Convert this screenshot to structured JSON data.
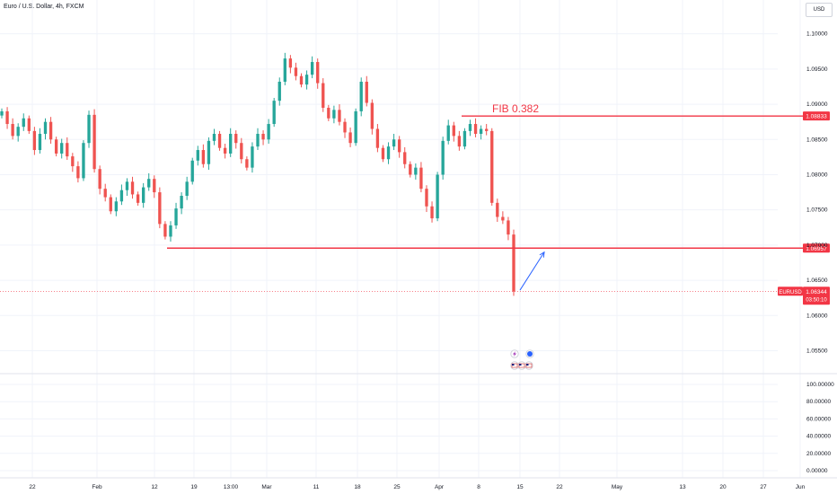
{
  "header": {
    "title": "Euro / U.S. Dollar, 4h, FXCM",
    "currency_label": "USD"
  },
  "colors": {
    "up": "#26a69a",
    "down": "#ef5350",
    "level": "#f23645",
    "arrow": "#2962ff",
    "grid": "#f0f3fa",
    "text": "#131722"
  },
  "chart_data": {
    "type": "candlestick",
    "symbol": "EURUSD",
    "timeframe": "4h",
    "x_ticks": [
      "22",
      "Feb",
      "12",
      "19",
      "13:00",
      "Mar",
      "11",
      "18",
      "25",
      "Apr",
      "8",
      "15",
      "22",
      "May",
      "13",
      "20",
      "27",
      "Jun"
    ],
    "y_ticks": [
      "1.10000",
      "1.09500",
      "1.09000",
      "1.08500",
      "1.08000",
      "1.07500",
      "1.07000",
      "1.06500",
      "1.06000",
      "1.05500"
    ],
    "ylim": [
      1.052,
      1.102
    ],
    "closes": [
      1.089,
      1.0872,
      1.0855,
      1.0868,
      1.088,
      1.0862,
      1.0835,
      1.0858,
      1.0875,
      1.085,
      1.083,
      1.0845,
      1.0826,
      1.0812,
      1.0795,
      1.0845,
      1.0885,
      1.0808,
      1.078,
      1.0768,
      1.0748,
      1.0762,
      1.0778,
      1.079,
      1.0772,
      1.076,
      1.0782,
      1.0794,
      1.0775,
      1.073,
      1.0712,
      1.0728,
      1.0752,
      1.077,
      1.079,
      1.082,
      1.0835,
      1.0815,
      1.0848,
      1.0858,
      1.0838,
      1.083,
      1.0858,
      1.0845,
      1.0822,
      1.081,
      1.084,
      1.0858,
      1.085,
      1.0872,
      1.0905,
      1.0932,
      1.0965,
      1.0952,
      1.094,
      1.0928,
      1.0942,
      1.096,
      1.093,
      1.0895,
      1.088,
      1.0892,
      1.0875,
      1.086,
      1.0845,
      1.089,
      1.0932,
      1.0902,
      1.0865,
      1.0838,
      1.0822,
      1.084,
      1.085,
      1.0832,
      1.0815,
      1.08,
      1.081,
      1.078,
      1.0755,
      1.0738,
      1.08,
      1.0848,
      1.087,
      1.0855,
      1.084,
      1.0862,
      1.0872,
      1.0858,
      1.0865,
      1.0862,
      1.076,
      1.074,
      1.0735,
      1.0715,
      1.0634
    ],
    "levels": [
      {
        "label": "FIB 0.382",
        "price_label": "1.08833",
        "value": 1.08833
      },
      {
        "label": "",
        "price_label": "1.06957",
        "value": 1.06957
      }
    ],
    "last_price": {
      "symbol_label": "EURUSD",
      "value_label": "1.06344",
      "countdown": "03:50:10",
      "value": 1.06344
    },
    "projection_arrow": {
      "from": [
        "15",
        1.0636
      ],
      "to": [
        "22",
        1.069
      ]
    },
    "event_markers": [
      "lightning-icon",
      "globe-icon",
      "us-flag-icon",
      "us-flag-icon",
      "us-flag-icon"
    ],
    "indicator": {
      "ylim": [
        0,
        100
      ],
      "y_ticks": [
        "100.00000",
        "80.00000",
        "60.00000",
        "40.00000",
        "20.00000",
        "0.00000"
      ]
    },
    "grid": true
  }
}
